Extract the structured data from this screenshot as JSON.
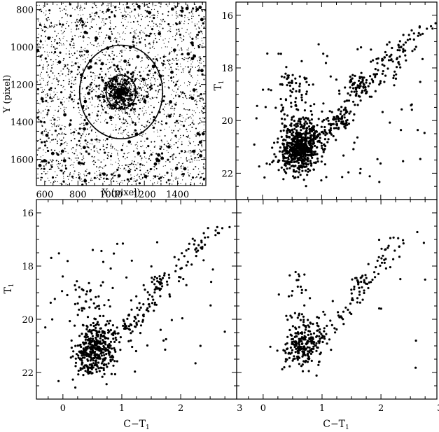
{
  "chart_data": [
    {
      "type": "scatter",
      "panel": "top-left",
      "xlabel": "X (pixel)",
      "ylabel": "Y (pixel)",
      "xlim": [
        550,
        1570
      ],
      "ylim": [
        1740,
        760
      ],
      "xticks": [
        600,
        800,
        1000,
        1200,
        1400
      ],
      "yticks": [
        800,
        1000,
        1200,
        1400,
        1600
      ],
      "circles": [
        {
          "cx": 1060,
          "cy": 1240,
          "r": 90
        },
        {
          "cx": 1060,
          "cy": 1240,
          "r": 250
        }
      ],
      "field_density": "dense",
      "cluster_center": [
        1060,
        1240
      ]
    },
    {
      "type": "scatter",
      "panel": "top-right",
      "xlabel": "",
      "ylabel": "T1",
      "xlim": [
        -0.45,
        2.95
      ],
      "ylim": [
        23.0,
        15.5
      ],
      "xticks": [
        0,
        1,
        2,
        3
      ],
      "yticks": [
        16,
        18,
        20,
        22
      ],
      "components": [
        {
          "kind": "main-sequence",
          "color_center": 0.65,
          "mag_center": 21.0,
          "points": 620
        },
        {
          "kind": "red-giant-branch",
          "color_range": [
            1.1,
            2.5
          ],
          "mag_range": [
            20.3,
            17.0
          ],
          "points": 140
        },
        {
          "kind": "red-clump",
          "color_center": 1.6,
          "mag_center": 18.6,
          "points": 40
        },
        {
          "kind": "bright-giants",
          "color_range": [
            1.9,
            2.9
          ],
          "mag_range": [
            17.8,
            16.3
          ],
          "points": 25
        },
        {
          "kind": "field",
          "points": 90
        }
      ]
    },
    {
      "type": "scatter",
      "panel": "bottom-left",
      "xlabel": "C−T1",
      "ylabel": "T1",
      "xlim": [
        -0.45,
        2.95
      ],
      "ylim": [
        23.0,
        15.5
      ],
      "xticks": [
        0,
        1,
        2,
        3
      ],
      "yticks": [
        16,
        18,
        20,
        22
      ],
      "components": [
        {
          "kind": "main-sequence",
          "color_center": 0.55,
          "mag_center": 21.2,
          "points": 380
        },
        {
          "kind": "red-giant-branch",
          "color_range": [
            1.1,
            2.4
          ],
          "mag_range": [
            20.3,
            17.0
          ],
          "points": 80
        },
        {
          "kind": "red-clump",
          "color_center": 1.6,
          "mag_center": 18.6,
          "points": 25
        },
        {
          "kind": "bright-giants",
          "color_range": [
            2.0,
            2.8
          ],
          "mag_range": [
            17.6,
            16.4
          ],
          "points": 14
        },
        {
          "kind": "field",
          "points": 60
        }
      ]
    },
    {
      "type": "scatter",
      "panel": "bottom-right",
      "xlabel": "C−T1",
      "ylabel": "",
      "xlim": [
        -0.45,
        2.95
      ],
      "ylim": [
        23.0,
        15.5
      ],
      "xticks": [
        0,
        1,
        2,
        3
      ],
      "yticks": [
        16,
        18,
        20,
        22
      ],
      "components": [
        {
          "kind": "main-sequence",
          "color_center": 0.7,
          "mag_center": 21.0,
          "points": 230
        },
        {
          "kind": "red-giant-branch",
          "color_range": [
            1.2,
            2.3
          ],
          "mag_range": [
            20.0,
            17.2
          ],
          "points": 55
        },
        {
          "kind": "red-clump",
          "color_center": 1.65,
          "mag_center": 18.6,
          "points": 18
        },
        {
          "kind": "bright-giants",
          "color_range": [
            1.9,
            2.8
          ],
          "mag_range": [
            17.6,
            16.4
          ],
          "points": 10
        },
        {
          "kind": "field",
          "points": 12
        }
      ]
    }
  ]
}
